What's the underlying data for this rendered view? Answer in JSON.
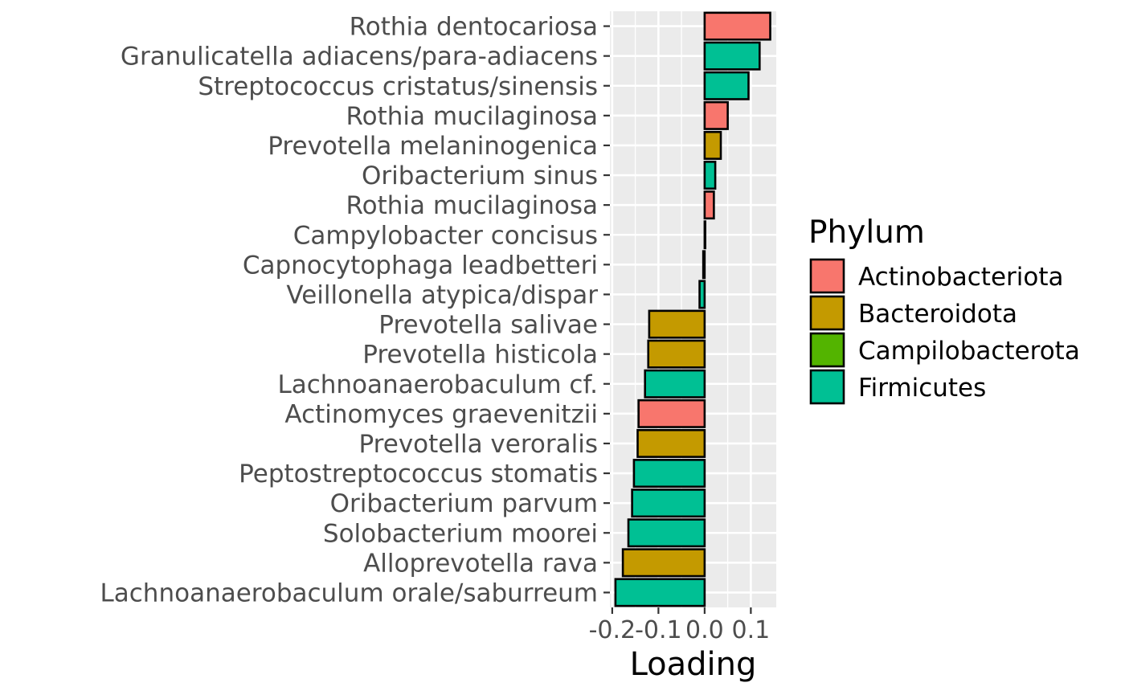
{
  "chart_data": {
    "type": "bar",
    "orientation": "horizontal",
    "xlabel": "Loading",
    "ylabel": "",
    "xlim": [
      -0.205,
      0.155
    ],
    "x_ticks": [
      -0.2,
      -0.1,
      0.0,
      0.1
    ],
    "x_tick_labels": [
      "-0.2",
      "-0.1",
      "0.0",
      "0.1"
    ],
    "x_minor_ticks": [
      -0.15,
      -0.05,
      0.05
    ],
    "grid": true,
    "categories": [
      "Rothia dentocariosa",
      "Granulicatella adiacens/para-adiacens",
      "Streptococcus cristatus/sinensis",
      "Rothia mucilaginosa",
      "Prevotella melaninogenica",
      "Oribacterium sinus",
      "Rothia mucilaginosa",
      "Campylobacter concisus",
      "Capnocytophaga leadbetteri",
      "Veillonella atypica/dispar",
      "Prevotella salivae",
      "Prevotella histicola",
      "Lachnoanaerobaculum cf.",
      "Actinomyces graevenitzii",
      "Prevotella veroralis",
      "Peptostreptococcus stomatis",
      "Oribacterium parvum",
      "Solobacterium moorei",
      "Alloprevotella rava",
      "Lachnoanaerobaculum orale/saburreum"
    ],
    "values": [
      0.142,
      0.119,
      0.095,
      0.05,
      0.035,
      0.023,
      0.02,
      0.001,
      -0.003,
      -0.011,
      -0.12,
      -0.122,
      -0.129,
      -0.143,
      -0.145,
      -0.153,
      -0.157,
      -0.165,
      -0.177,
      -0.193
    ],
    "phylum": [
      "Actinobacteriota",
      "Firmicutes",
      "Firmicutes",
      "Actinobacteriota",
      "Bacteroidota",
      "Firmicutes",
      "Actinobacteriota",
      "Campilobacterota",
      "Bacteroidota",
      "Firmicutes",
      "Bacteroidota",
      "Bacteroidota",
      "Firmicutes",
      "Actinobacteriota",
      "Bacteroidota",
      "Firmicutes",
      "Firmicutes",
      "Firmicutes",
      "Bacteroidota",
      "Firmicutes"
    ],
    "legend": {
      "title": "Phylum",
      "placement": "right",
      "entries": [
        {
          "name": "Actinobacteriota",
          "color": "#F8766D"
        },
        {
          "name": "Bacteroidota",
          "color": "#C49A00"
        },
        {
          "name": "Campilobacterota",
          "color": "#53B400"
        },
        {
          "name": "Firmicutes",
          "color": "#00C094"
        }
      ]
    },
    "colors": {
      "panel_background": "#EBEBEB",
      "gridline": "#FFFFFF",
      "bar_outline": "#000000",
      "tick_text": "#4D4D4D",
      "tick_mark": "#333333"
    }
  }
}
